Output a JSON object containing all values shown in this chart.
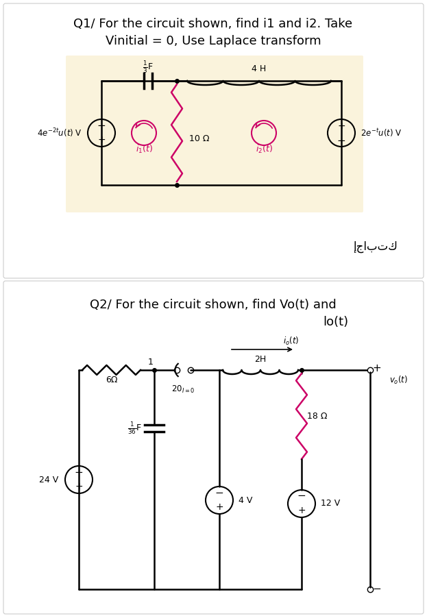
{
  "bg_color": "#ffffff",
  "q1_bg": "#faf3dc",
  "q1_title_line1": "Q1/ For the circuit shown, find i1 and i2. Take",
  "q1_title_line2": "Vinitial = 0, Use Laplace transform",
  "q1_answer_label": "إجابتك",
  "q2_title_line1": "Q2/ For the circuit shown, find Vo(t) and",
  "q2_title_line2": "lo(t)",
  "component_color": "#cc0066",
  "resistor_color": "#cc0066"
}
